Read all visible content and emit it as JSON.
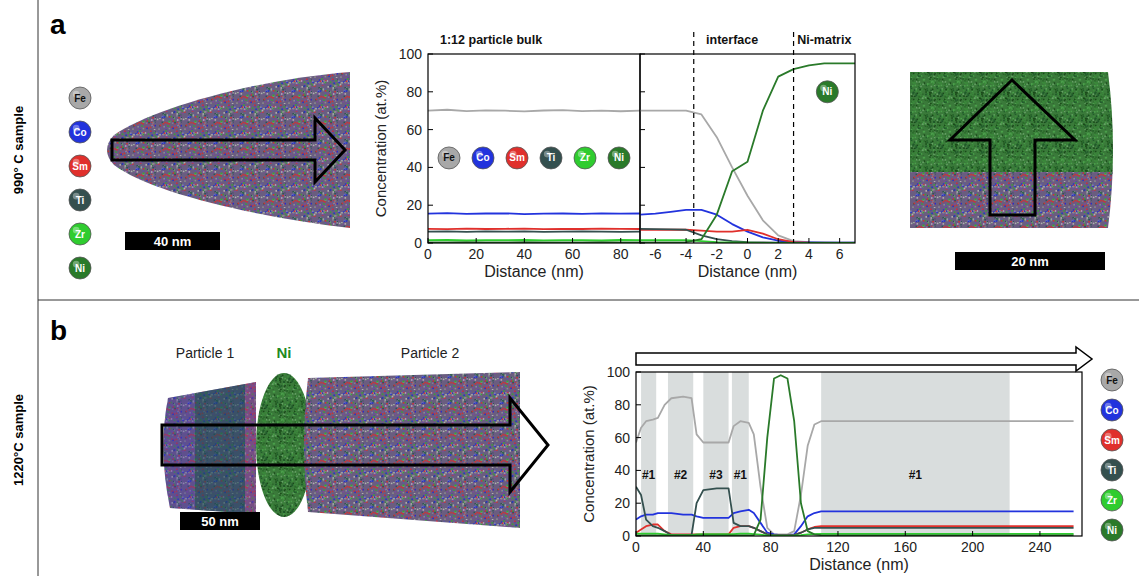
{
  "figure": {
    "element_legend": [
      "Fe",
      "Co",
      "Sm",
      "Ti",
      "Zr",
      "Ni"
    ],
    "panels": [
      {
        "letter": "a",
        "row_label": "990° C sample",
        "scale_bars": [
          "40 nm",
          "20 nm"
        ]
      },
      {
        "letter": "b",
        "row_label": "1220°C sample",
        "scale_bars": [
          "50 nm"
        ],
        "image_labels": [
          "Particle 1",
          "Ni",
          "Particle 2"
        ]
      }
    ]
  },
  "chart_data": [
    {
      "type": "line",
      "title": "1:12 particle bulk",
      "xlabel": "Distance (nm)",
      "ylabel": "Concentration (at.%)",
      "xlim": [
        0,
        88
      ],
      "xticks": [
        0,
        20,
        40,
        60,
        80
      ],
      "ylim": [
        0,
        100
      ],
      "yticks": [
        0,
        20,
        40,
        60,
        80,
        100
      ],
      "legend": "center",
      "x": [
        0,
        8,
        16,
        24,
        32,
        40,
        48,
        56,
        64,
        72,
        80,
        88
      ],
      "series": [
        {
          "name": "Fe",
          "color": "#a8a8a8",
          "values": [
            70,
            70.5,
            69.8,
            70.2,
            70,
            69.6,
            70.1,
            70.3,
            69.8,
            70,
            69.7,
            70
          ]
        },
        {
          "name": "Co",
          "color": "#2233dd",
          "values": [
            15.5,
            15.8,
            15.4,
            15.6,
            15.7,
            15.3,
            15.5,
            15.6,
            15.4,
            15.7,
            15.5,
            15.6
          ]
        },
        {
          "name": "Sm",
          "color": "#e0302c",
          "values": [
            7.5,
            7.3,
            7.6,
            7.4,
            7.5,
            7.6,
            7.3,
            7.5,
            7.4,
            7.6,
            7.5,
            7.4
          ]
        },
        {
          "name": "Ti",
          "color": "#34504f",
          "values": [
            6,
            6.2,
            5.9,
            6.1,
            6,
            6.1,
            5.9,
            6,
            6.2,
            6,
            5.9,
            6
          ]
        },
        {
          "name": "Zr",
          "color": "#2fcc2f",
          "values": [
            1.5,
            1.6,
            1.4,
            1.5,
            1.5,
            1.6,
            1.4,
            1.5,
            1.5,
            1.4,
            1.6,
            1.5
          ]
        },
        {
          "name": "Ni",
          "color": "#2a7a2a",
          "values": [
            0.3,
            0.3,
            0.4,
            0.3,
            0.3,
            0.4,
            0.3,
            0.3,
            0.3,
            0.4,
            0.3,
            0.3
          ]
        }
      ]
    },
    {
      "type": "line",
      "xlabel": "Distance (nm)",
      "xlim": [
        -7,
        7
      ],
      "xticks": [
        -6,
        -4,
        -2,
        0,
        2,
        4,
        6
      ],
      "ylim": [
        0,
        100
      ],
      "yticks": [
        0,
        20,
        40,
        60,
        80,
        100
      ],
      "tick_labels": "x",
      "legend": "none",
      "vlines": [
        -3.5,
        3
      ],
      "headers": [
        {
          "text": "interface",
          "x": -1
        },
        {
          "text": "Ni-matrix",
          "x": 5
        }
      ],
      "annotations": [
        {
          "text": "Ni",
          "x": 5.2,
          "y": 80
        }
      ],
      "x": [
        -7,
        -6,
        -5,
        -4,
        -3,
        -2,
        -1,
        0,
        1,
        2,
        3,
        4,
        5,
        6,
        7
      ],
      "series": [
        {
          "name": "Fe",
          "color": "#a8a8a8",
          "values": [
            70,
            70,
            70,
            70,
            68,
            56,
            40,
            25,
            12,
            4,
            1,
            0.5,
            0.4,
            0.3,
            0.3
          ]
        },
        {
          "name": "Co",
          "color": "#2233dd",
          "values": [
            15,
            15.5,
            16.5,
            17.5,
            17.5,
            15,
            10,
            6,
            3,
            1.2,
            0.5,
            0.3,
            0.2,
            0.2,
            0.2
          ]
        },
        {
          "name": "Sm",
          "color": "#e0302c",
          "values": [
            7,
            7,
            7,
            7,
            6.5,
            6,
            6,
            7,
            5,
            2,
            0.5,
            0.2,
            0.1,
            0.1,
            0.1
          ]
        },
        {
          "name": "Ti",
          "color": "#34504f",
          "values": [
            7.5,
            7.3,
            7.2,
            7,
            4,
            2,
            1,
            0.5,
            0.3,
            0.2,
            0.1,
            0.1,
            0.1,
            0.1,
            0.1
          ]
        },
        {
          "name": "Zr",
          "color": "#2fcc2f",
          "values": [
            1.5,
            1.5,
            1.5,
            1.5,
            1,
            0.5,
            0.3,
            0.2,
            0.1,
            0.1,
            0.1,
            0.1,
            0.1,
            0.1,
            0.1
          ]
        },
        {
          "name": "Ni",
          "color": "#2a7a2a",
          "values": [
            0.3,
            0.3,
            0.3,
            0.5,
            2,
            15,
            38,
            43,
            70,
            88,
            92,
            94,
            95,
            95,
            95
          ]
        }
      ]
    },
    {
      "type": "line",
      "xlabel": "Distance (nm)",
      "ylabel": "Concentration (at.%)",
      "xlim": [
        0,
        265
      ],
      "xticks": [
        0,
        40,
        80,
        120,
        160,
        200,
        240
      ],
      "ylim": [
        0,
        100
      ],
      "yticks": [
        0,
        20,
        40,
        60,
        80,
        100
      ],
      "legend": "right",
      "regions": [
        {
          "x": [
            3,
            12
          ],
          "label": "#1"
        },
        {
          "x": [
            19,
            34
          ],
          "label": "#2"
        },
        {
          "x": [
            40,
            55
          ],
          "label": "#3"
        },
        {
          "x": [
            57,
            67
          ],
          "label": "#1"
        },
        {
          "x": [
            110,
            222
          ],
          "label": "#1"
        }
      ],
      "x": [
        0,
        3,
        6,
        10,
        13,
        17,
        21,
        28,
        33,
        36,
        40,
        48,
        55,
        58,
        62,
        67,
        70,
        74,
        78,
        82,
        86,
        90,
        94,
        98,
        102,
        106,
        110,
        150,
        200,
        260
      ],
      "series": [
        {
          "name": "Fe",
          "color": "#a8a8a8",
          "values": [
            57,
            66,
            70,
            71,
            72,
            80,
            84,
            85,
            84,
            62,
            57,
            57,
            57,
            67,
            70,
            69,
            62,
            30,
            5,
            1,
            1,
            1,
            3,
            25,
            55,
            68,
            70,
            70,
            70,
            70
          ]
        },
        {
          "name": "Co",
          "color": "#2233dd",
          "values": [
            10,
            12,
            13,
            13,
            14,
            14,
            14,
            13,
            13,
            12,
            11,
            11,
            11,
            14,
            15,
            16,
            14,
            8,
            2,
            1,
            0.5,
            0.5,
            1,
            6,
            12,
            14,
            15,
            15,
            15,
            15
          ]
        },
        {
          "name": "Sm",
          "color": "#e0302c",
          "values": [
            2,
            4,
            6,
            7,
            7,
            3,
            1,
            1,
            1,
            1,
            1,
            1,
            1,
            5,
            6,
            6,
            5,
            3,
            1,
            0.5,
            0.3,
            0.3,
            0.5,
            2,
            4,
            5.5,
            6,
            6,
            6,
            6
          ]
        },
        {
          "name": "Ti",
          "color": "#34504f",
          "values": [
            30,
            25,
            10,
            6,
            5,
            3,
            0.5,
            0.5,
            0.5,
            20,
            28,
            29,
            29,
            8,
            6,
            6,
            5,
            3,
            1,
            0.5,
            0.3,
            0.3,
            0.5,
            2,
            4,
            5,
            5,
            5,
            5,
            5
          ]
        },
        {
          "name": "Zr",
          "color": "#2fcc2f",
          "values": [
            1.5,
            1.5,
            1.5,
            1.5,
            1.5,
            1,
            0.5,
            0.5,
            0.5,
            1,
            1.2,
            1.2,
            1.2,
            1.2,
            1.5,
            1.5,
            1.2,
            0.8,
            0.3,
            0.2,
            0.2,
            0.2,
            0.2,
            0.5,
            1,
            1.2,
            1.3,
            1.3,
            1.3,
            1.3
          ]
        },
        {
          "name": "Ni",
          "color": "#2a7a2a",
          "values": [
            0.3,
            0.3,
            0.3,
            0.3,
            0.3,
            0.3,
            0.3,
            0.3,
            0.3,
            0.3,
            0.3,
            0.3,
            0.3,
            0.3,
            0.3,
            0.3,
            0.5,
            10,
            60,
            96,
            98,
            96,
            70,
            20,
            3,
            1,
            0.5,
            0.4,
            0.4,
            0.4
          ]
        }
      ]
    }
  ]
}
